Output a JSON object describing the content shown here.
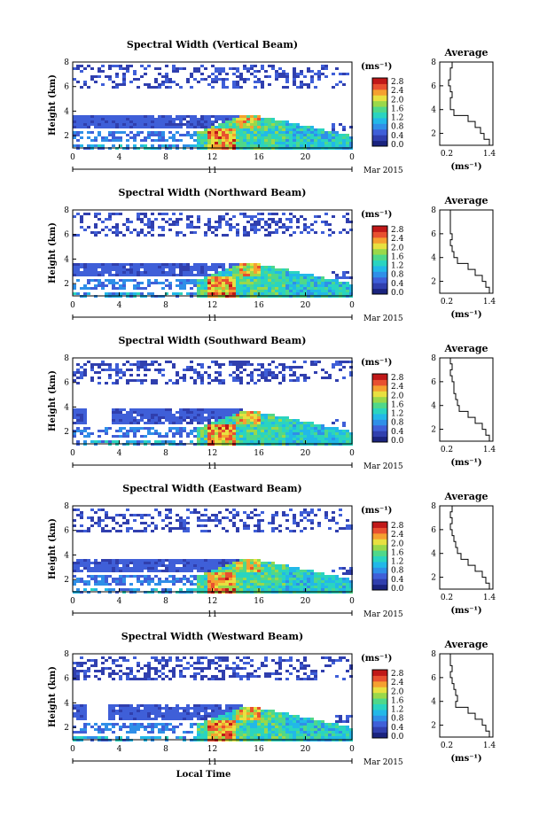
{
  "chart_data": [
    {
      "type": "heatmap",
      "title": "Spectral Width (Vertical Beam)",
      "ylabel": "Height (km)",
      "x_ticks": [
        "0",
        "4",
        "8",
        "12",
        "16",
        "20",
        "0"
      ],
      "y_ticks": [
        "2",
        "4",
        "6",
        "8"
      ],
      "ylim": [
        1,
        8
      ],
      "xlim": [
        0,
        24
      ],
      "date_day": "11",
      "date_month": "Mar 2015",
      "colorbar": {
        "unit": "(ms⁻¹)",
        "ticks": [
          "0.0",
          "0.4",
          "0.8",
          "1.2",
          "1.6",
          "2.0",
          "2.4",
          "2.8"
        ]
      },
      "profile": {
        "title": "Average",
        "xlabel": "(ms⁻¹)",
        "x_ticks": [
          "0.2",
          "1.4"
        ],
        "y_ticks": [
          "2",
          "4",
          "6",
          "8"
        ],
        "xlim": [
          0.0,
          1.5
        ],
        "ylim": [
          1,
          8
        ],
        "height": [
          8.0,
          7.5,
          7.0,
          6.5,
          6.0,
          5.5,
          5.0,
          4.5,
          4.0,
          3.5,
          3.0,
          2.5,
          2.0,
          1.5
        ],
        "width": [
          0.35,
          0.3,
          0.3,
          0.25,
          0.3,
          0.35,
          0.3,
          0.3,
          0.4,
          0.8,
          1.0,
          1.15,
          1.25,
          1.4
        ]
      }
    },
    {
      "type": "heatmap",
      "title": "Spectral Width (Northward Beam)",
      "ylabel": "Height (km)",
      "x_ticks": [
        "0",
        "4",
        "8",
        "12",
        "16",
        "20",
        "0"
      ],
      "y_ticks": [
        "2",
        "4",
        "6",
        "8"
      ],
      "ylim": [
        1,
        8
      ],
      "xlim": [
        0,
        24
      ],
      "date_day": "11",
      "date_month": "Mar 2015",
      "colorbar": {
        "unit": "(ms⁻¹)",
        "ticks": [
          "0.0",
          "0.4",
          "0.8",
          "1.2",
          "1.6",
          "2.0",
          "2.4",
          "2.8"
        ]
      },
      "profile": {
        "title": "Average",
        "xlabel": "(ms⁻¹)",
        "x_ticks": [
          "0.2",
          "1.4"
        ],
        "y_ticks": [
          "2",
          "4",
          "6",
          "8"
        ],
        "xlim": [
          0.0,
          1.5
        ],
        "ylim": [
          1,
          8
        ],
        "height": [
          8.0,
          7.5,
          7.0,
          6.5,
          6.0,
          5.5,
          5.0,
          4.5,
          4.0,
          3.5,
          3.0,
          2.5,
          2.0,
          1.5
        ],
        "width": [
          0.3,
          0.3,
          0.3,
          0.3,
          0.35,
          0.3,
          0.35,
          0.4,
          0.5,
          0.8,
          1.0,
          1.2,
          1.3,
          1.4
        ]
      }
    },
    {
      "type": "heatmap",
      "title": "Spectral Width (Southward Beam)",
      "ylabel": "Height (km)",
      "x_ticks": [
        "0",
        "4",
        "8",
        "12",
        "16",
        "20",
        "0"
      ],
      "y_ticks": [
        "2",
        "4",
        "6",
        "8"
      ],
      "ylim": [
        1,
        8
      ],
      "xlim": [
        0,
        24
      ],
      "date_day": "11",
      "date_month": "Mar 2015",
      "colorbar": {
        "unit": "(ms⁻¹)",
        "ticks": [
          "0.0",
          "0.4",
          "0.8",
          "1.2",
          "1.6",
          "2.0",
          "2.4",
          "2.8"
        ]
      },
      "profile": {
        "title": "Average",
        "xlabel": "(ms⁻¹)",
        "x_ticks": [
          "0.2",
          "1.4"
        ],
        "y_ticks": [
          "2",
          "4",
          "6",
          "8"
        ],
        "xlim": [
          0.0,
          1.5
        ],
        "ylim": [
          1,
          8
        ],
        "height": [
          8.0,
          7.5,
          7.0,
          6.5,
          6.0,
          5.5,
          5.0,
          4.5,
          4.0,
          3.5,
          3.0,
          2.5,
          2.0,
          1.5
        ],
        "width": [
          0.3,
          0.35,
          0.3,
          0.35,
          0.4,
          0.4,
          0.45,
          0.5,
          0.55,
          0.8,
          1.0,
          1.2,
          1.3,
          1.4
        ]
      }
    },
    {
      "type": "heatmap",
      "title": "Spectral Width (Eastward Beam)",
      "ylabel": "Height (km)",
      "x_ticks": [
        "0",
        "4",
        "8",
        "12",
        "16",
        "20",
        "0"
      ],
      "y_ticks": [
        "2",
        "4",
        "6",
        "8"
      ],
      "ylim": [
        1,
        8
      ],
      "xlim": [
        0,
        24
      ],
      "date_day": "11",
      "date_month": "Mar 2015",
      "colorbar": {
        "unit": "(ms⁻¹)",
        "ticks": [
          "0.0",
          "0.4",
          "0.8",
          "1.2",
          "1.6",
          "2.0",
          "2.4",
          "2.8"
        ]
      },
      "profile": {
        "title": "Average",
        "xlabel": "(ms⁻¹)",
        "x_ticks": [
          "0.2",
          "1.4"
        ],
        "y_ticks": [
          "2",
          "4",
          "6",
          "8"
        ],
        "xlim": [
          0.0,
          1.5
        ],
        "ylim": [
          1,
          8
        ],
        "height": [
          8.0,
          7.5,
          7.0,
          6.5,
          6.0,
          5.5,
          5.0,
          4.5,
          4.0,
          3.5,
          3.0,
          2.5,
          2.0,
          1.5
        ],
        "width": [
          0.35,
          0.3,
          0.35,
          0.3,
          0.35,
          0.4,
          0.45,
          0.5,
          0.6,
          0.8,
          1.0,
          1.2,
          1.3,
          1.4
        ]
      }
    },
    {
      "type": "heatmap",
      "title": "Spectral Width (Westward Beam)",
      "ylabel": "Height (km)",
      "x_ticks": [
        "0",
        "4",
        "8",
        "12",
        "16",
        "20",
        "0"
      ],
      "y_ticks": [
        "2",
        "4",
        "6",
        "8"
      ],
      "ylim": [
        1,
        8
      ],
      "xlim": [
        0,
        24
      ],
      "date_day": "11",
      "date_month": "Mar 2015",
      "xlabel": "Local Time",
      "colorbar": {
        "unit": "(ms⁻¹)",
        "ticks": [
          "0.0",
          "0.4",
          "0.8",
          "1.2",
          "1.6",
          "2.0",
          "2.4",
          "2.8"
        ]
      },
      "profile": {
        "title": "Average",
        "xlabel": "(ms⁻¹)",
        "x_ticks": [
          "0.2",
          "1.4"
        ],
        "y_ticks": [
          "2",
          "4",
          "6",
          "8"
        ],
        "xlim": [
          0.0,
          1.5
        ],
        "ylim": [
          1,
          8
        ],
        "height": [
          8.0,
          7.5,
          7.0,
          6.5,
          6.0,
          5.5,
          5.0,
          4.5,
          4.0,
          3.5,
          3.0,
          2.5,
          2.0,
          1.5
        ],
        "width": [
          0.3,
          0.3,
          0.35,
          0.3,
          0.35,
          0.4,
          0.45,
          0.5,
          0.45,
          0.8,
          1.0,
          1.2,
          1.3,
          1.4
        ]
      }
    }
  ],
  "colors": {
    "scale": [
      "#1a237e",
      "#303fae",
      "#3f5fd8",
      "#2f8fe8",
      "#22b8e8",
      "#2ad4c0",
      "#4fd88a",
      "#9ad84a",
      "#e8e040",
      "#f5a030",
      "#e85030",
      "#c01818"
    ]
  }
}
